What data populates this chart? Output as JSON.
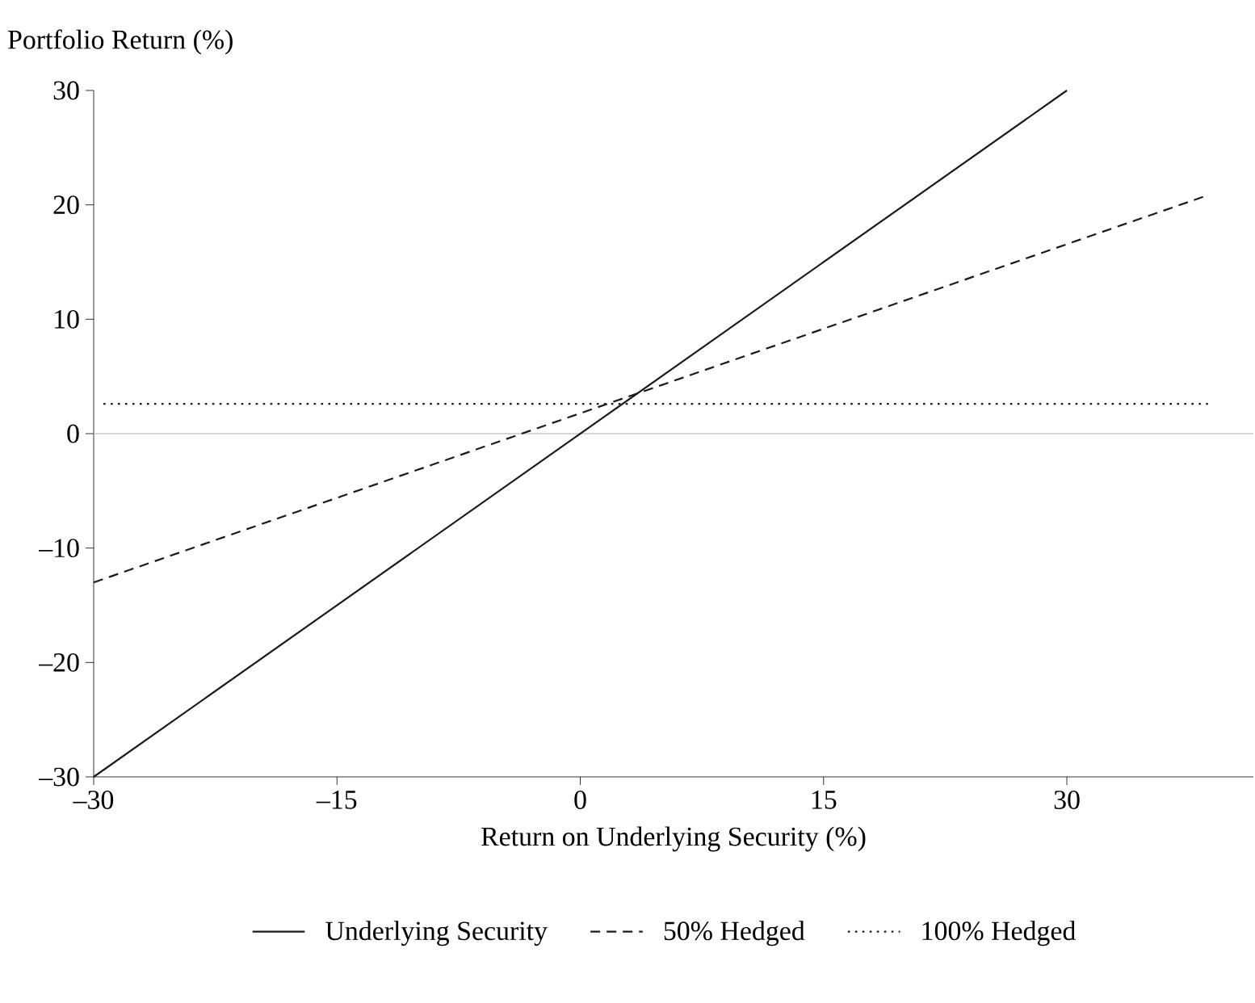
{
  "chart_data": {
    "type": "line",
    "ylabel": "Portfolio Return (%)",
    "xlabel": "Return on Underlying Security (%)",
    "xlim": [
      -30,
      41.5
    ],
    "ylim": [
      -30,
      30
    ],
    "xticks": [
      {
        "value": -30,
        "label": "–30"
      },
      {
        "value": -15,
        "label": "–15"
      },
      0,
      15,
      30
    ],
    "yticks": [
      {
        "value": -30,
        "label": "–30"
      },
      {
        "value": -20,
        "label": "–20"
      },
      {
        "value": -10,
        "label": "–10"
      },
      0,
      10,
      20,
      30
    ],
    "series": [
      {
        "name": "Underlying Security",
        "color": "#1a1a1a",
        "line_style": "solid",
        "x": [
          -30,
          30
        ],
        "values": [
          -30,
          30
        ]
      },
      {
        "name": "50% Hedged",
        "color": "#1a1a1a",
        "line_style": "dashed",
        "x": [
          -30,
          38.4
        ],
        "values": [
          -13,
          20.7
        ]
      },
      {
        "name": "100% Hedged",
        "color": "#1a1a1a",
        "line_style": "dotted",
        "x": [
          -29.4,
          38.7
        ],
        "values": [
          2.6,
          2.6
        ]
      }
    ],
    "ref_lines": [
      {
        "axis": "y",
        "value": 0,
        "color": "#c8c8c8"
      }
    ],
    "legend": "bottom",
    "grid": false,
    "marker": "none"
  }
}
